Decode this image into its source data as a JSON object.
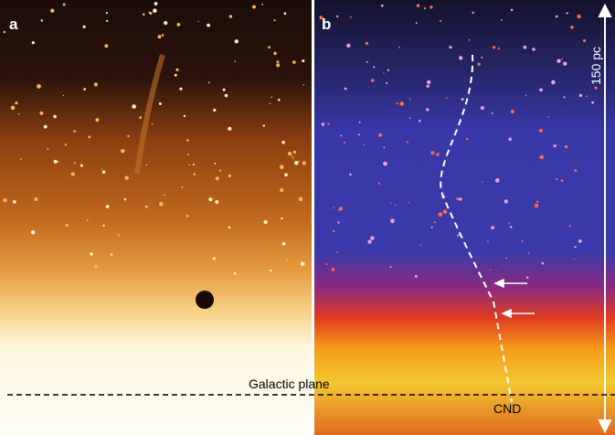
{
  "panels": [
    {
      "label": "a"
    },
    {
      "label": "b"
    }
  ],
  "scale_bar": {
    "label": "150 pc"
  },
  "annotations": {
    "galactic_plane": "Galactic plane",
    "cnd": "CND"
  }
}
